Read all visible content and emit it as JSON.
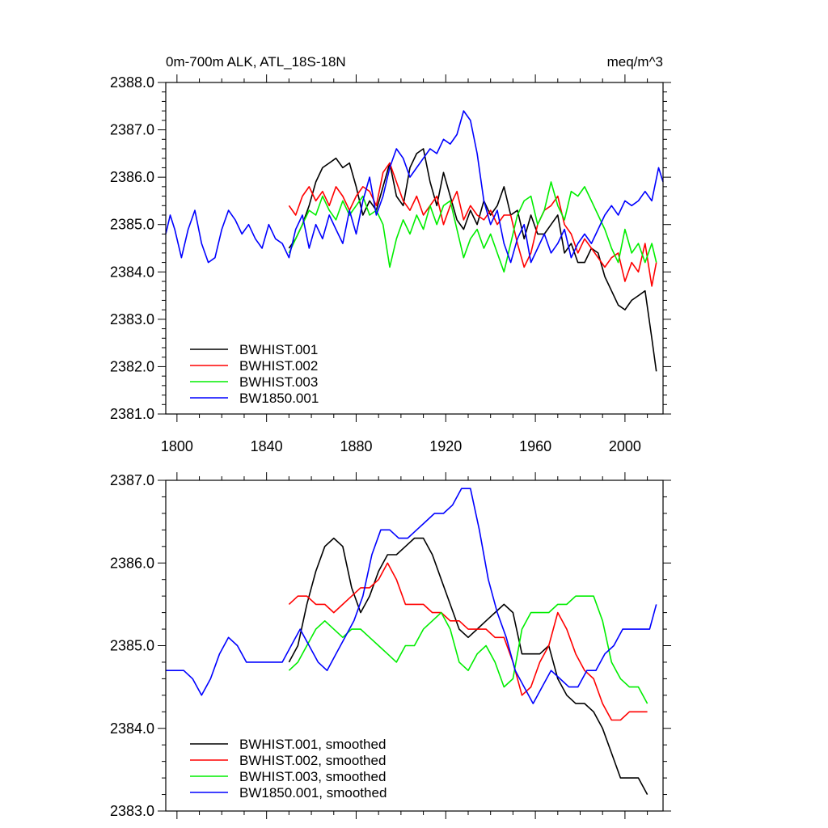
{
  "chart_data": [
    {
      "type": "line",
      "title_left": "0m-700m ALK, ATL_18S-18N",
      "title_right": "meq/m^3",
      "xlabel": "",
      "ylabel": "",
      "xlim": [
        1795,
        2017
      ],
      "ylim": [
        2381.0,
        2388.0
      ],
      "xticks": [
        1800,
        1840,
        1880,
        1920,
        1960,
        2000
      ],
      "xtick_labels": [
        "1800",
        "1840",
        "1880",
        "1920",
        "1960",
        "2000"
      ],
      "yticks": [
        2381.0,
        2382.0,
        2383.0,
        2384.0,
        2385.0,
        2386.0,
        2387.0,
        2388.0
      ],
      "ytick_labels": [
        "2381.0",
        "2382.0",
        "2383.0",
        "2384.0",
        "2385.0",
        "2386.0",
        "2387.0",
        "2388.0"
      ],
      "legend_position": "bottom-left",
      "series": [
        {
          "name": "BWHIST.001",
          "color": "#000000",
          "x": [
            1850,
            1853,
            1856,
            1859,
            1862,
            1865,
            1868,
            1871,
            1874,
            1877,
            1880,
            1883,
            1886,
            1889,
            1892,
            1895,
            1898,
            1901,
            1904,
            1907,
            1910,
            1913,
            1916,
            1919,
            1922,
            1925,
            1928,
            1931,
            1934,
            1937,
            1940,
            1943,
            1946,
            1949,
            1952,
            1955,
            1958,
            1961,
            1964,
            1967,
            1970,
            1973,
            1976,
            1979,
            1982,
            1985,
            1988,
            1991,
            1994,
            1997,
            2000,
            2003,
            2006,
            2009,
            2012,
            2014
          ],
          "values": [
            2384.5,
            2384.7,
            2385.0,
            2385.4,
            2385.9,
            2386.2,
            2386.3,
            2386.4,
            2386.2,
            2386.3,
            2385.8,
            2385.2,
            2385.5,
            2385.3,
            2385.8,
            2386.3,
            2385.6,
            2385.4,
            2386.2,
            2386.5,
            2386.6,
            2385.9,
            2385.4,
            2386.1,
            2385.6,
            2385.1,
            2384.9,
            2385.3,
            2385.0,
            2385.5,
            2385.2,
            2385.4,
            2385.8,
            2385.2,
            2385.3,
            2384.7,
            2385.2,
            2384.8,
            2384.8,
            2385.0,
            2385.2,
            2384.4,
            2384.6,
            2384.2,
            2384.2,
            2384.5,
            2384.4,
            2383.9,
            2383.6,
            2383.3,
            2383.2,
            2383.4,
            2383.5,
            2383.6,
            2382.6,
            2381.9
          ]
        },
        {
          "name": "BWHIST.002",
          "color": "#ff0000",
          "x": [
            1850,
            1853,
            1856,
            1859,
            1862,
            1865,
            1868,
            1871,
            1874,
            1877,
            1880,
            1883,
            1886,
            1889,
            1892,
            1895,
            1898,
            1901,
            1904,
            1907,
            1910,
            1913,
            1916,
            1919,
            1922,
            1925,
            1928,
            1931,
            1934,
            1937,
            1940,
            1943,
            1946,
            1949,
            1952,
            1955,
            1958,
            1961,
            1964,
            1967,
            1970,
            1973,
            1976,
            1979,
            1982,
            1985,
            1988,
            1991,
            1994,
            1997,
            2000,
            2003,
            2006,
            2009,
            2012,
            2014
          ],
          "values": [
            2385.4,
            2385.2,
            2385.6,
            2385.8,
            2385.5,
            2385.7,
            2385.4,
            2385.8,
            2385.6,
            2385.3,
            2385.6,
            2385.8,
            2385.7,
            2385.4,
            2386.1,
            2386.3,
            2385.9,
            2385.5,
            2385.3,
            2385.6,
            2385.2,
            2385.4,
            2385.6,
            2385.0,
            2385.4,
            2385.7,
            2385.1,
            2385.4,
            2385.2,
            2385.1,
            2385.3,
            2385.0,
            2385.2,
            2385.2,
            2384.6,
            2384.1,
            2384.4,
            2385.0,
            2385.3,
            2385.4,
            2385.6,
            2385.0,
            2384.8,
            2384.4,
            2384.7,
            2384.5,
            2384.3,
            2384.1,
            2384.3,
            2384.4,
            2383.8,
            2384.2,
            2384.0,
            2384.6,
            2383.7,
            2384.2
          ]
        },
        {
          "name": "BWHIST.003",
          "color": "#00ee00",
          "x": [
            1850,
            1853,
            1856,
            1859,
            1862,
            1865,
            1868,
            1871,
            1874,
            1877,
            1880,
            1883,
            1886,
            1889,
            1892,
            1895,
            1898,
            1901,
            1904,
            1907,
            1910,
            1913,
            1916,
            1919,
            1922,
            1925,
            1928,
            1931,
            1934,
            1937,
            1940,
            1943,
            1946,
            1949,
            1952,
            1955,
            1958,
            1961,
            1964,
            1967,
            1970,
            1973,
            1976,
            1979,
            1982,
            1985,
            1988,
            1991,
            1994,
            1997,
            2000,
            2003,
            2006,
            2009,
            2012,
            2014
          ],
          "values": [
            2384.4,
            2384.7,
            2385.0,
            2385.3,
            2385.2,
            2385.6,
            2385.3,
            2385.1,
            2385.5,
            2385.2,
            2385.4,
            2385.6,
            2385.2,
            2385.3,
            2385.0,
            2384.1,
            2384.7,
            2385.1,
            2384.8,
            2385.2,
            2384.9,
            2385.4,
            2385.0,
            2385.4,
            2385.5,
            2384.9,
            2384.3,
            2384.7,
            2384.9,
            2384.5,
            2384.8,
            2384.4,
            2384.0,
            2384.6,
            2385.2,
            2385.5,
            2385.6,
            2385.0,
            2385.3,
            2385.9,
            2385.4,
            2385.1,
            2385.7,
            2385.6,
            2385.8,
            2385.5,
            2385.2,
            2384.9,
            2384.5,
            2384.2,
            2384.9,
            2384.4,
            2384.6,
            2384.2,
            2384.6,
            2384.2
          ]
        },
        {
          "name": "BW1850.001",
          "color": "#0000ff",
          "x": [
            1795,
            1797,
            1799,
            1802,
            1805,
            1808,
            1811,
            1814,
            1817,
            1820,
            1823,
            1826,
            1829,
            1832,
            1835,
            1838,
            1841,
            1844,
            1847,
            1850,
            1853,
            1856,
            1859,
            1862,
            1865,
            1868,
            1871,
            1874,
            1877,
            1880,
            1883,
            1886,
            1889,
            1892,
            1895,
            1898,
            1901,
            1904,
            1907,
            1910,
            1913,
            1916,
            1919,
            1922,
            1925,
            1928,
            1931,
            1934,
            1937,
            1940,
            1943,
            1946,
            1949,
            1952,
            1955,
            1958,
            1961,
            1964,
            1967,
            1970,
            1973,
            1976,
            1979,
            1982,
            1985,
            1988,
            1991,
            1994,
            1997,
            2000,
            2003,
            2006,
            2009,
            2012,
            2015,
            2017
          ],
          "values": [
            2384.8,
            2385.2,
            2384.9,
            2384.3,
            2384.9,
            2385.3,
            2384.6,
            2384.2,
            2384.3,
            2384.9,
            2385.3,
            2385.1,
            2384.8,
            2385.0,
            2384.7,
            2384.5,
            2385.0,
            2384.7,
            2384.6,
            2384.3,
            2384.9,
            2385.2,
            2384.5,
            2385.0,
            2384.7,
            2385.2,
            2384.9,
            2384.6,
            2385.3,
            2384.8,
            2385.5,
            2386.0,
            2385.2,
            2385.6,
            2386.2,
            2386.6,
            2386.4,
            2386.0,
            2386.2,
            2386.4,
            2386.6,
            2386.5,
            2386.8,
            2386.7,
            2386.9,
            2387.4,
            2387.2,
            2386.5,
            2385.5,
            2385.0,
            2385.3,
            2384.6,
            2384.2,
            2384.7,
            2385.0,
            2384.2,
            2384.5,
            2384.8,
            2384.4,
            2384.6,
            2384.9,
            2384.3,
            2384.6,
            2384.8,
            2384.6,
            2384.9,
            2385.2,
            2385.4,
            2385.2,
            2385.5,
            2385.4,
            2385.5,
            2385.7,
            2385.5,
            2386.2,
            2385.9
          ]
        }
      ]
    },
    {
      "type": "line",
      "title": "",
      "xlabel": "",
      "ylabel": "",
      "xlim": [
        1795,
        2017
      ],
      "ylim": [
        2383.0,
        2387.0
      ],
      "xticks": [
        1800,
        1840,
        1880,
        1920,
        1960,
        2000
      ],
      "yticks": [
        2383.0,
        2384.0,
        2385.0,
        2386.0,
        2387.0
      ],
      "ytick_labels": [
        "2383.0",
        "2384.0",
        "2385.0",
        "2386.0",
        "2387.0"
      ],
      "legend_position": "bottom-left",
      "series": [
        {
          "name": "BWHIST.001, smoothed",
          "color": "#000000",
          "x": [
            1850,
            1854,
            1858,
            1862,
            1866,
            1870,
            1874,
            1878,
            1882,
            1886,
            1890,
            1894,
            1898,
            1902,
            1906,
            1910,
            1914,
            1918,
            1922,
            1926,
            1930,
            1934,
            1938,
            1942,
            1946,
            1950,
            1954,
            1958,
            1962,
            1966,
            1970,
            1974,
            1978,
            1982,
            1986,
            1990,
            1994,
            1998,
            2002,
            2006,
            2010
          ],
          "values": [
            2384.8,
            2385.0,
            2385.5,
            2385.9,
            2386.2,
            2386.3,
            2386.2,
            2385.7,
            2385.4,
            2385.6,
            2385.9,
            2386.1,
            2386.1,
            2386.2,
            2386.3,
            2386.3,
            2386.1,
            2385.8,
            2385.5,
            2385.2,
            2385.1,
            2385.2,
            2385.3,
            2385.4,
            2385.5,
            2385.4,
            2384.9,
            2384.9,
            2384.9,
            2385.0,
            2384.6,
            2384.4,
            2384.3,
            2384.3,
            2384.2,
            2384.0,
            2383.7,
            2383.4,
            2383.4,
            2383.4,
            2383.2
          ]
        },
        {
          "name": "BWHIST.002, smoothed",
          "color": "#ff0000",
          "x": [
            1850,
            1854,
            1858,
            1862,
            1866,
            1870,
            1874,
            1878,
            1882,
            1886,
            1890,
            1894,
            1898,
            1902,
            1906,
            1910,
            1914,
            1918,
            1922,
            1926,
            1930,
            1934,
            1938,
            1942,
            1946,
            1950,
            1954,
            1958,
            1962,
            1966,
            1970,
            1974,
            1978,
            1982,
            1986,
            1990,
            1994,
            1998,
            2002,
            2006,
            2010
          ],
          "values": [
            2385.5,
            2385.6,
            2385.6,
            2385.5,
            2385.5,
            2385.4,
            2385.5,
            2385.6,
            2385.7,
            2385.7,
            2385.8,
            2386.0,
            2385.8,
            2385.5,
            2385.5,
            2385.5,
            2385.4,
            2385.4,
            2385.3,
            2385.3,
            2385.2,
            2385.2,
            2385.2,
            2385.1,
            2385.1,
            2384.8,
            2384.4,
            2384.5,
            2384.8,
            2385.0,
            2385.4,
            2385.2,
            2384.9,
            2384.7,
            2384.6,
            2384.3,
            2384.1,
            2384.1,
            2384.2,
            2384.2,
            2384.2
          ]
        },
        {
          "name": "BWHIST.003, smoothed",
          "color": "#00ee00",
          "x": [
            1850,
            1854,
            1858,
            1862,
            1866,
            1870,
            1874,
            1878,
            1882,
            1886,
            1890,
            1894,
            1898,
            1902,
            1906,
            1910,
            1914,
            1918,
            1922,
            1926,
            1930,
            1934,
            1938,
            1942,
            1946,
            1950,
            1954,
            1958,
            1962,
            1966,
            1970,
            1974,
            1978,
            1982,
            1986,
            1990,
            1994,
            1998,
            2002,
            2006,
            2010
          ],
          "values": [
            2384.7,
            2384.8,
            2385.0,
            2385.2,
            2385.3,
            2385.2,
            2385.1,
            2385.2,
            2385.2,
            2385.1,
            2385.0,
            2384.9,
            2384.8,
            2385.0,
            2385.0,
            2385.2,
            2385.3,
            2385.4,
            2385.2,
            2384.8,
            2384.7,
            2384.9,
            2385.0,
            2384.8,
            2384.5,
            2384.6,
            2385.2,
            2385.4,
            2385.4,
            2385.4,
            2385.5,
            2385.5,
            2385.6,
            2385.6,
            2385.6,
            2385.3,
            2384.8,
            2384.6,
            2384.5,
            2384.5,
            2384.3
          ]
        },
        {
          "name": "BW1850.001, smoothed",
          "color": "#0000ff",
          "x": [
            1795,
            1799,
            1803,
            1807,
            1811,
            1815,
            1819,
            1823,
            1827,
            1831,
            1835,
            1839,
            1843,
            1847,
            1851,
            1855,
            1859,
            1863,
            1867,
            1871,
            1875,
            1879,
            1883,
            1887,
            1891,
            1895,
            1899,
            1903,
            1907,
            1911,
            1915,
            1919,
            1923,
            1927,
            1931,
            1935,
            1939,
            1943,
            1947,
            1951,
            1955,
            1959,
            1963,
            1967,
            1971,
            1975,
            1979,
            1983,
            1987,
            1991,
            1995,
            1999,
            2003,
            2007,
            2011,
            2014
          ],
          "values": [
            2384.7,
            2384.7,
            2384.7,
            2384.6,
            2384.4,
            2384.6,
            2384.9,
            2385.1,
            2385.0,
            2384.8,
            2384.8,
            2384.8,
            2384.8,
            2384.8,
            2385.0,
            2385.2,
            2385.0,
            2384.8,
            2384.7,
            2384.9,
            2385.1,
            2385.3,
            2385.6,
            2386.1,
            2386.4,
            2386.4,
            2386.3,
            2386.3,
            2386.4,
            2386.5,
            2386.6,
            2386.6,
            2386.7,
            2386.9,
            2386.9,
            2386.4,
            2385.8,
            2385.4,
            2385.1,
            2384.7,
            2384.5,
            2384.3,
            2384.5,
            2384.7,
            2384.6,
            2384.5,
            2384.5,
            2384.7,
            2384.7,
            2384.9,
            2385.0,
            2385.2,
            2385.2,
            2385.2,
            2385.2,
            2385.5
          ]
        }
      ]
    }
  ]
}
